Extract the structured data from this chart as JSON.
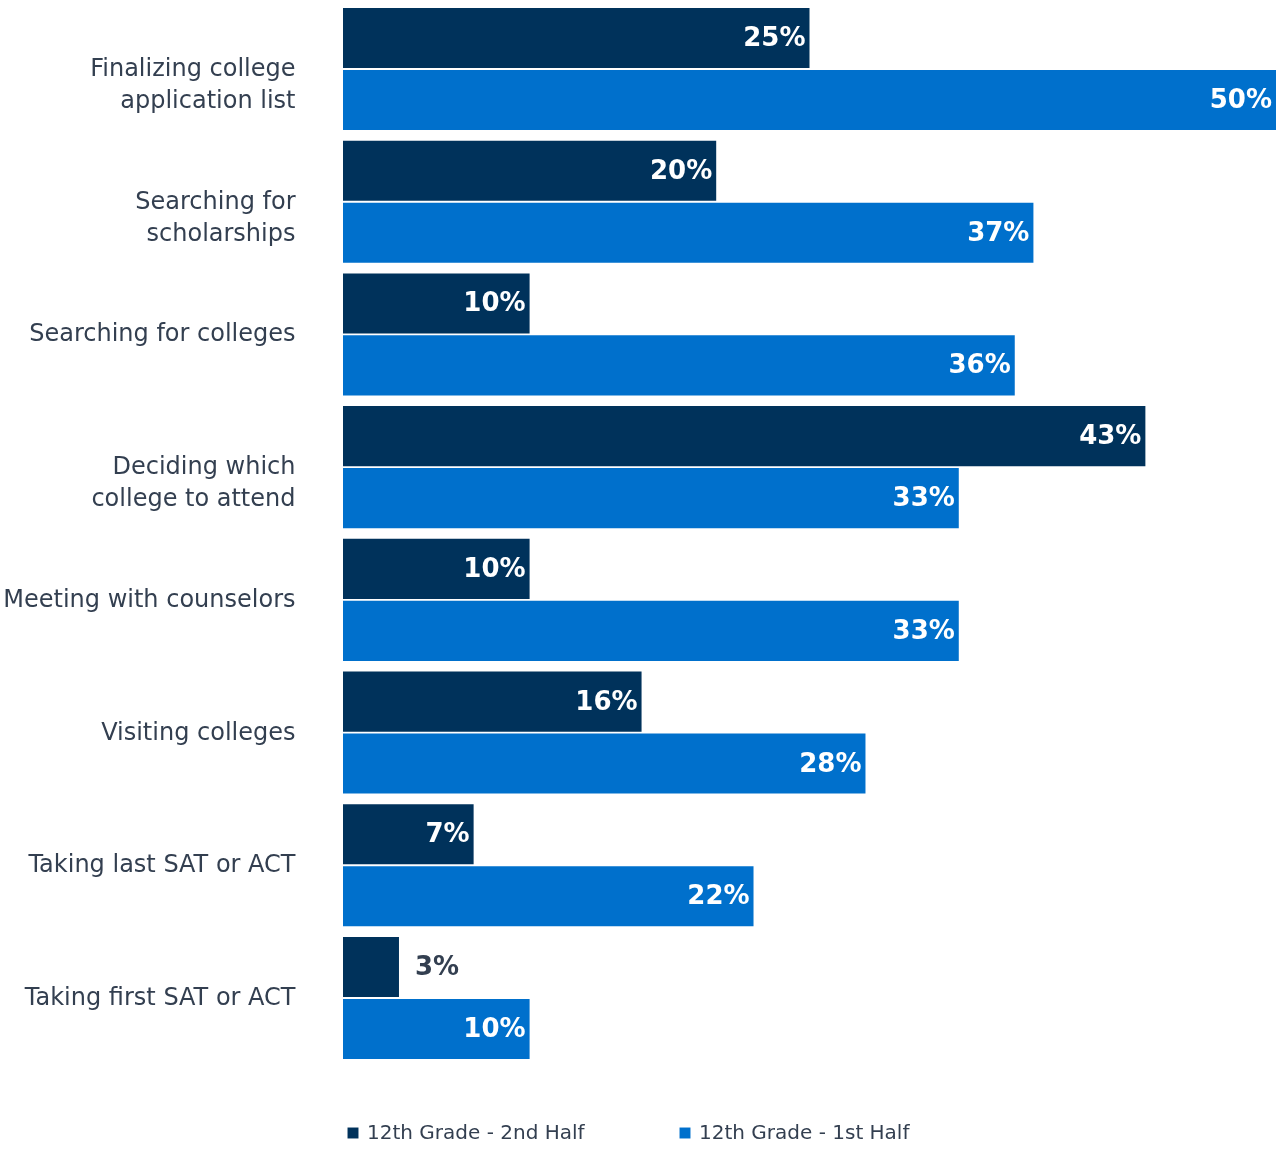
{
  "chart_data": {
    "type": "bar",
    "orientation": "horizontal",
    "categories": [
      "Finalizing college application list",
      "Searching for scholarships",
      "Searching for colleges",
      "Deciding which college to attend",
      "Meeting with counselors",
      "Visiting colleges",
      "Taking last SAT or ACT",
      "Taking first SAT or ACT"
    ],
    "series": [
      {
        "name": "12th Grade - 2nd Half",
        "color": "#00325b",
        "values": [
          25,
          20,
          10,
          43,
          10,
          16,
          7,
          3
        ],
        "value_labels": [
          "25%",
          "20%",
          "10%",
          "43%",
          "10%",
          "16%",
          "7%",
          "3%"
        ]
      },
      {
        "name": "12th Grade - 1st Half",
        "color": "#0070cc",
        "values": [
          50,
          37,
          36,
          33,
          33,
          28,
          22,
          10
        ],
        "value_labels": [
          "50%",
          "37%",
          "36%",
          "33%",
          "33%",
          "28%",
          "22%",
          "10%"
        ]
      }
    ],
    "xlim": [
      0,
      50
    ],
    "legend": "bottom",
    "grid": false
  }
}
